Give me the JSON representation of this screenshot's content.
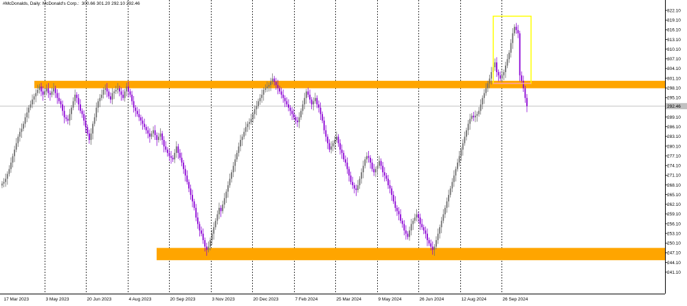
{
  "header": {
    "symbol": "#McDonalds, Daily:",
    "description": "McDonald's Corp.",
    "ohlc": "300.66 301.20 292.10 292.46"
  },
  "colors": {
    "background": "#ffffff",
    "bull": "#6e6e6e",
    "bear": "#8a00d4",
    "zone": "#ffa500",
    "highlight_box": "#ffff00",
    "current_price_line": "#c0c0c0",
    "pink_line": "#ff9ab0"
  },
  "chart_data": {
    "type": "candlestick",
    "title": "#McDonalds, Daily: McDonald's Corp. 300.66 301.20 292.10 292.46",
    "ylim": [
      240.5,
      323.5
    ],
    "y_ticks": [
      "322.10",
      "319.10",
      "316.10",
      "313.10",
      "310.10",
      "307.10",
      "304.10",
      "301.10",
      "298.10",
      "295.10",
      "292.10",
      "289.10",
      "286.10",
      "283.10",
      "280.10",
      "277.10",
      "274.10",
      "271.10",
      "268.10",
      "265.10",
      "262.10",
      "259.10",
      "256.10",
      "253.10",
      "250.10",
      "247.10",
      "244.10",
      "241.10"
    ],
    "current_price_label": "292.46",
    "x_labels": [
      "17 Mar 2023",
      "3 May 2023",
      "20 Jun 2023",
      "4 Aug 2023",
      "20 Sep 2023",
      "3 Nov 2023",
      "20 Dec 2023",
      "7 Feb 2024",
      "25 Mar 2024",
      "9 May 2024",
      "26 Jun 2024",
      "12 Aug 2024",
      "26 Sep 2024"
    ],
    "grid": "vertical dotted",
    "zones": [
      {
        "name": "resistance",
        "low": 298.0,
        "high": 300.3
      },
      {
        "name": "support",
        "low": 244.8,
        "high": 248.6
      }
    ],
    "highlight_box": {
      "x_from": "26 Sep 2024",
      "low": 299.5,
      "high": 320.3
    },
    "series": [
      {
        "close": [
          268.5,
          269,
          270,
          271.5,
          273,
          275,
          277,
          279,
          281,
          283,
          284.5,
          285.5,
          287,
          289,
          290.5,
          292,
          293,
          294.5,
          295.5,
          296.5,
          297.5,
          298.5,
          297,
          296,
          297,
          298,
          296.5,
          296,
          297,
          298,
          296.5,
          295,
          294,
          293,
          291,
          289,
          288.5,
          288,
          290,
          292,
          294,
          296,
          295,
          293,
          291,
          290,
          288,
          286,
          284,
          282,
          284,
          287,
          289,
          292,
          294,
          295,
          296,
          297.5,
          298,
          297,
          295.5,
          294.5,
          296.5,
          297,
          297.5,
          298,
          297,
          296,
          295,
          297,
          298.5,
          297,
          296,
          294,
          292,
          291,
          290,
          289,
          288,
          287,
          286,
          285,
          284,
          283,
          284,
          285,
          283.5,
          282,
          283,
          284,
          282,
          280,
          279,
          278,
          277,
          276.5,
          276,
          278,
          280,
          278,
          276.5,
          275,
          273,
          271,
          269,
          267,
          265,
          263,
          261,
          258,
          256,
          254,
          253,
          251,
          249,
          248,
          249,
          251,
          253,
          255,
          257,
          259,
          261,
          260,
          262,
          264,
          266,
          268,
          270,
          272,
          274,
          276,
          278,
          280,
          282,
          283,
          284.5,
          286,
          287,
          287.5,
          288.5,
          290,
          291.5,
          292.5,
          294,
          295,
          296,
          297.5,
          298,
          298.5,
          299,
          300,
          301,
          300,
          299,
          298,
          297,
          296,
          295,
          294,
          293,
          292,
          291,
          290,
          289,
          288,
          287.5,
          289,
          291,
          293,
          295,
          297,
          296,
          294.5,
          293,
          294,
          295,
          293,
          292,
          290,
          288,
          285,
          283,
          281,
          279,
          280,
          281,
          282,
          283,
          281,
          279,
          278,
          276,
          275,
          273,
          271,
          269,
          268,
          267,
          266.5,
          268,
          270,
          272,
          274,
          276,
          277,
          276.5,
          275,
          273,
          272,
          273,
          274,
          275.5,
          274,
          272,
          271,
          270,
          268,
          267,
          265,
          263,
          261,
          260,
          259,
          257,
          256,
          254,
          253,
          252,
          254,
          256,
          257,
          258,
          259,
          258,
          256,
          255,
          254,
          253,
          251,
          250,
          249,
          248,
          249,
          251,
          253,
          255,
          257,
          259,
          261,
          263,
          265,
          267,
          269,
          271,
          273,
          275,
          277,
          279,
          281,
          283,
          285,
          287,
          288.5,
          289.5,
          289,
          289.5,
          290,
          291,
          293,
          295,
          296.5,
          298,
          299.5,
          301,
          303,
          304.5,
          306,
          303,
          302,
          301,
          302,
          303,
          305,
          307,
          309,
          312,
          315,
          317,
          316,
          315,
          302,
          300.3,
          298,
          295,
          292.46
        ]
      }
    ]
  }
}
